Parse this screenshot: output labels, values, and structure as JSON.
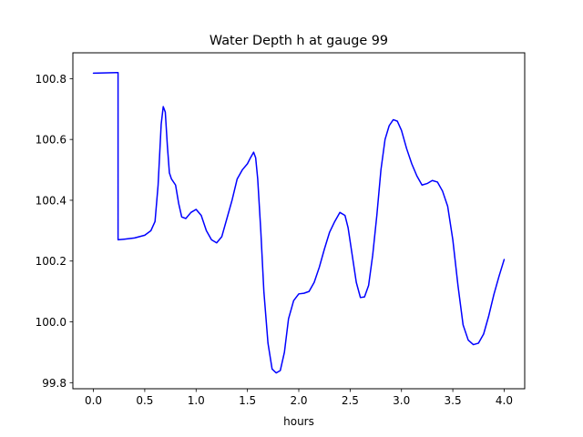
{
  "chart_data": {
    "type": "line",
    "title": "Water Depth h at gauge 99",
    "xlabel": "hours",
    "ylabel": "",
    "xlim": [
      -0.2,
      4.2
    ],
    "ylim": [
      99.78,
      100.885
    ],
    "xticks": [
      0.0,
      0.5,
      1.0,
      1.5,
      2.0,
      2.5,
      3.0,
      3.5,
      4.0
    ],
    "xtick_labels": [
      "0.0",
      "0.5",
      "1.0",
      "1.5",
      "2.0",
      "2.5",
      "3.0",
      "3.5",
      "4.0"
    ],
    "yticks": [
      99.8,
      100.0,
      100.2,
      100.4,
      100.6,
      100.8
    ],
    "ytick_labels": [
      "99.8",
      "100.0",
      "100.2",
      "100.4",
      "100.6",
      "100.8"
    ],
    "grid": false,
    "series": [
      {
        "color": "#0000ff",
        "x": [
          0.0,
          0.24,
          0.24,
          0.3,
          0.4,
          0.5,
          0.56,
          0.6,
          0.63,
          0.66,
          0.68,
          0.7,
          0.72,
          0.74,
          0.76,
          0.8,
          0.83,
          0.86,
          0.9,
          0.95,
          1.0,
          1.05,
          1.1,
          1.15,
          1.2,
          1.25,
          1.3,
          1.35,
          1.4,
          1.45,
          1.5,
          1.53,
          1.56,
          1.58,
          1.6,
          1.63,
          1.66,
          1.7,
          1.74,
          1.78,
          1.82,
          1.86,
          1.9,
          1.95,
          2.0,
          2.05,
          2.1,
          2.15,
          2.2,
          2.25,
          2.3,
          2.35,
          2.4,
          2.45,
          2.48,
          2.52,
          2.56,
          2.6,
          2.64,
          2.68,
          2.72,
          2.76,
          2.8,
          2.84,
          2.88,
          2.92,
          2.96,
          3.0,
          3.05,
          3.1,
          3.15,
          3.2,
          3.25,
          3.3,
          3.35,
          3.4,
          3.45,
          3.5,
          3.55,
          3.6,
          3.65,
          3.7,
          3.75,
          3.8,
          3.85,
          3.9,
          3.95,
          4.0
        ],
        "y": [
          100.818,
          100.82,
          100.27,
          100.272,
          100.276,
          100.285,
          100.3,
          100.33,
          100.45,
          100.65,
          100.708,
          100.69,
          100.58,
          100.49,
          100.47,
          100.45,
          100.39,
          100.345,
          100.34,
          100.36,
          100.37,
          100.35,
          100.3,
          100.27,
          100.26,
          100.28,
          100.34,
          100.4,
          100.47,
          100.5,
          100.52,
          100.54,
          100.558,
          100.54,
          100.47,
          100.3,
          100.1,
          99.93,
          99.845,
          99.832,
          99.84,
          99.9,
          100.01,
          100.07,
          100.092,
          100.094,
          100.1,
          100.13,
          100.18,
          100.24,
          100.295,
          100.33,
          100.36,
          100.35,
          100.31,
          100.22,
          100.13,
          100.08,
          100.082,
          100.12,
          100.22,
          100.35,
          100.5,
          100.6,
          100.645,
          100.665,
          100.66,
          100.63,
          100.57,
          100.52,
          100.48,
          100.45,
          100.455,
          100.465,
          100.46,
          100.43,
          100.38,
          100.27,
          100.12,
          99.99,
          99.94,
          99.925,
          99.93,
          99.96,
          100.02,
          100.09,
          100.15,
          100.205
        ]
      }
    ]
  }
}
